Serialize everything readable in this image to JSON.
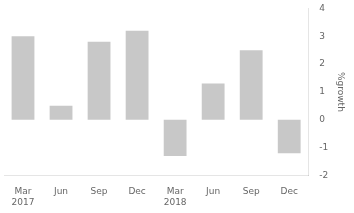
{
  "chart_data": {
    "type": "bar",
    "categories": [
      "Mar\n2017",
      "Jun",
      "Sep",
      "Dec",
      "Mar\n2018",
      "Jun",
      "Sep",
      "Dec"
    ],
    "values": [
      3.0,
      0.5,
      2.8,
      3.2,
      -1.3,
      1.3,
      2.5,
      -1.2
    ],
    "color": "#c8c8c8",
    "ylabel": "%growth",
    "ylim": [
      -2,
      4
    ],
    "yticks": [
      -2,
      -1,
      0,
      1,
      2,
      3,
      4
    ],
    "grid": false
  }
}
